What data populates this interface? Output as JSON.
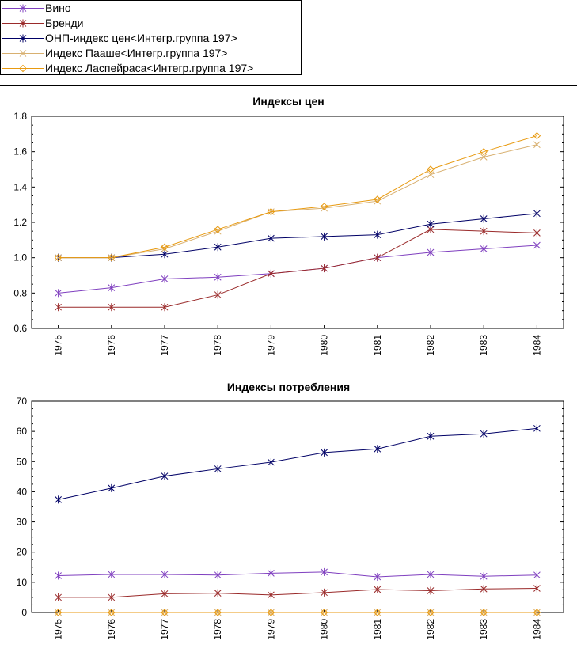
{
  "legend": {
    "items": [
      {
        "label": "Вино",
        "color": "#7f3fbf",
        "marker": "star"
      },
      {
        "label": "Бренди",
        "color": "#9a2a2a",
        "marker": "star"
      },
      {
        "label": "ОНП-индекс цен<Интегр.группа 197>",
        "color": "#000066",
        "marker": "star"
      },
      {
        "label": "Индекс Пааше<Интегр.группа 197>",
        "color": "#d8b070",
        "marker": "x"
      },
      {
        "label": "Индекс Ласпейраса<Интегр.группа 197>",
        "color": "#e89a10",
        "marker": "diamond"
      }
    ]
  },
  "chart_data": [
    {
      "type": "line",
      "title": "Индексы цен",
      "x": [
        "1975",
        "1976",
        "1977",
        "1978",
        "1979",
        "1980",
        "1981",
        "1982",
        "1983",
        "1984"
      ],
      "ylim": [
        0.6,
        1.8
      ],
      "yticks": [
        "0.6",
        "0.8",
        "1.0",
        "1.2",
        "1.4",
        "1.6",
        "1.8"
      ],
      "grid": false,
      "series": [
        {
          "name": "Вино",
          "color": "#7f3fbf",
          "marker": "star",
          "values": [
            0.8,
            0.83,
            0.88,
            0.89,
            0.91,
            0.94,
            1.0,
            1.03,
            1.05,
            1.07
          ]
        },
        {
          "name": "Бренди",
          "color": "#9a2a2a",
          "marker": "star",
          "values": [
            0.72,
            0.72,
            0.72,
            0.79,
            0.91,
            0.94,
            1.0,
            1.16,
            1.15,
            1.14
          ]
        },
        {
          "name": "ОНП-индекс цен<Интегр.группа 197>",
          "color": "#000066",
          "marker": "star",
          "values": [
            1.0,
            1.0,
            1.02,
            1.06,
            1.11,
            1.12,
            1.13,
            1.19,
            1.22,
            1.25
          ]
        },
        {
          "name": "Индекс Пааше<Интегр.группа 197>",
          "color": "#d8b070",
          "marker": "x",
          "values": [
            1.0,
            1.0,
            1.05,
            1.15,
            1.26,
            1.28,
            1.32,
            1.47,
            1.57,
            1.64
          ]
        },
        {
          "name": "Индекс Ласпейраса<Интегр.группа 197>",
          "color": "#e89a10",
          "marker": "diamond",
          "values": [
            1.0,
            1.0,
            1.06,
            1.16,
            1.26,
            1.29,
            1.33,
            1.5,
            1.6,
            1.69
          ]
        }
      ]
    },
    {
      "type": "line",
      "title": "Индексы потребления",
      "x": [
        "1975",
        "1976",
        "1977",
        "1978",
        "1979",
        "1980",
        "1981",
        "1982",
        "1983",
        "1984"
      ],
      "ylim": [
        0,
        70
      ],
      "yticks": [
        "0",
        "10",
        "20",
        "30",
        "40",
        "50",
        "60",
        "70"
      ],
      "grid": false,
      "series": [
        {
          "name": "Вино",
          "color": "#7f3fbf",
          "marker": "star",
          "values": [
            12.2,
            12.6,
            12.6,
            12.4,
            13.0,
            13.4,
            11.8,
            12.6,
            12.0,
            12.4
          ]
        },
        {
          "name": "Бренди",
          "color": "#9a2a2a",
          "marker": "star",
          "values": [
            5.0,
            5.0,
            6.2,
            6.4,
            5.8,
            6.6,
            7.6,
            7.2,
            7.8,
            8.0
          ]
        },
        {
          "name": "ОНП-индекс цен<Интегр.группа 197>",
          "color": "#000066",
          "marker": "star",
          "values": [
            37.4,
            41.2,
            45.2,
            47.6,
            49.8,
            53.0,
            54.2,
            58.4,
            59.2,
            61.0
          ]
        },
        {
          "name": "Индекс Пааше<Интегр.группа 197>",
          "color": "#d8b070",
          "marker": "x",
          "values": [
            0,
            0,
            0,
            0,
            0,
            0,
            0,
            0,
            0,
            0
          ]
        },
        {
          "name": "Индекс Ласпейраса<Интегр.группа 197>",
          "color": "#e89a10",
          "marker": "diamond",
          "values": [
            0,
            0,
            0,
            0,
            0,
            0,
            0,
            0,
            0,
            0
          ]
        }
      ]
    }
  ]
}
